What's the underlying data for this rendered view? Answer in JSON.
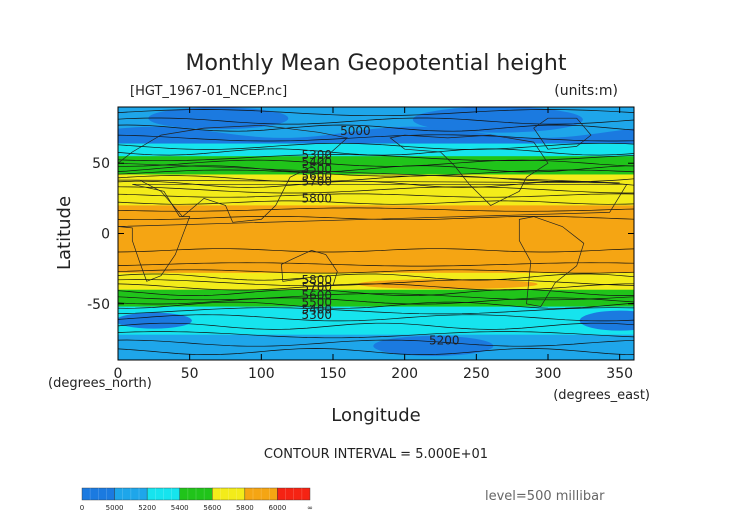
{
  "chart_data": {
    "type": "heatmap",
    "title": "Monthly Mean Geopotential height",
    "file_label": "[HGT_1967-01_NCEP.nc]",
    "units_label": "(units:m)",
    "xlabel": "Longitude",
    "ylabel": "Latitude",
    "x_unit_label": "(degrees_east)",
    "y_unit_label": "(degrees_north)",
    "xlim": [
      0,
      360
    ],
    "ylim": [
      -90,
      90
    ],
    "x_ticks": [
      0,
      50,
      100,
      150,
      200,
      250,
      300,
      350
    ],
    "y_ticks": [
      -50,
      0,
      50
    ],
    "contour_interval_text": "CONTOUR INTERVAL = 5.000E+01",
    "level_text": "level=500 millibar",
    "contour_labels": [
      {
        "text": "5000",
        "lon": 155,
        "lat": 73
      },
      {
        "text": "5300",
        "lon": 128,
        "lat": 56
      },
      {
        "text": "5400",
        "lon": 128,
        "lat": 51
      },
      {
        "text": "5500",
        "lon": 128,
        "lat": 46
      },
      {
        "text": "5600",
        "lon": 128,
        "lat": 41
      },
      {
        "text": "5700",
        "lon": 128,
        "lat": 37
      },
      {
        "text": "5800",
        "lon": 128,
        "lat": 25
      },
      {
        "text": "5800",
        "lon": 128,
        "lat": -33
      },
      {
        "text": "5700",
        "lon": 128,
        "lat": -38
      },
      {
        "text": "5600",
        "lon": 128,
        "lat": -44
      },
      {
        "text": "5500",
        "lon": 128,
        "lat": -49
      },
      {
        "text": "5400",
        "lon": 128,
        "lat": -54
      },
      {
        "text": "5300",
        "lon": 128,
        "lat": -58
      },
      {
        "text": "5200",
        "lon": 217,
        "lat": -76
      }
    ],
    "color_levels": [
      {
        "min": 0,
        "max": 5000,
        "color": "#1b7ae0"
      },
      {
        "min": 5000,
        "max": 5200,
        "color": "#1ea6ea"
      },
      {
        "min": 5200,
        "max": 5400,
        "color": "#16e4ee"
      },
      {
        "min": 5400,
        "max": 5600,
        "color": "#20c41a"
      },
      {
        "min": 5600,
        "max": 5800,
        "color": "#f3ec1a"
      },
      {
        "min": 5800,
        "max": 6000,
        "color": "#f5a513"
      },
      {
        "min": 6000,
        "max": "∞",
        "color": "#f52313"
      }
    ],
    "colorbar_labels": [
      "0",
      "5000",
      "5200",
      "5400",
      "5600",
      "5800",
      "6000",
      "∞"
    ],
    "bands_by_latitude": [
      {
        "lat_from": 90,
        "lat_to": 64,
        "level": 0
      },
      {
        "lat_from": 64,
        "lat_to": 55,
        "level": 2
      },
      {
        "lat_from": 55,
        "lat_to": 42,
        "level": 3
      },
      {
        "lat_from": 42,
        "lat_to": 20,
        "level": 4
      },
      {
        "lat_from": 20,
        "lat_to": -28,
        "level": 5
      },
      {
        "lat_from": -28,
        "lat_to": -40,
        "level": 4
      },
      {
        "lat_from": -40,
        "lat_to": -52,
        "level": 3
      },
      {
        "lat_from": -52,
        "lat_to": -72,
        "level": 2
      },
      {
        "lat_from": -72,
        "lat_to": -90,
        "level": 1
      }
    ]
  }
}
